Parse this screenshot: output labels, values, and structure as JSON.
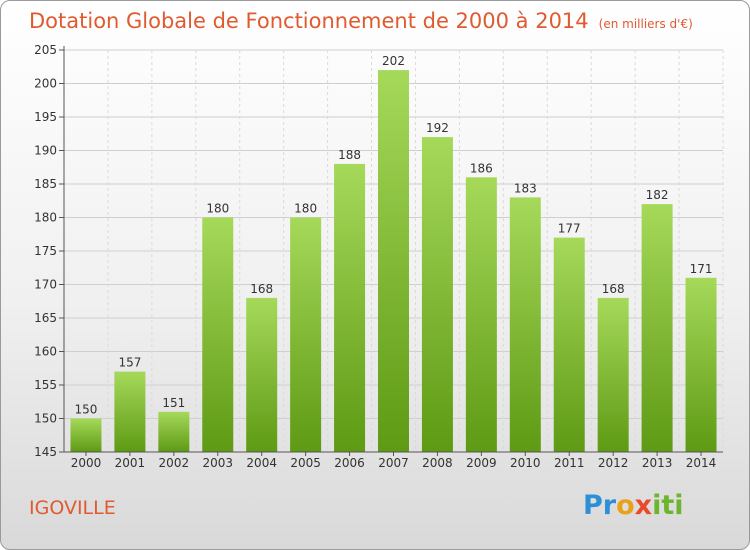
{
  "header": {
    "title": "Dotation Globale de Fonctionnement de 2000 à 2014",
    "unit": "(en milliers d'€)"
  },
  "footer": {
    "commune": "IGOVILLE",
    "brand": "Proxiti"
  },
  "colors": {
    "title": "#e05a2f",
    "bar_light": "#a6d95a",
    "bar_dark": "#5e9a14"
  },
  "chart_data": {
    "type": "bar",
    "title": "Dotation Globale de Fonctionnement de 2000 à 2014",
    "subtitle": "(en milliers d'€)",
    "xlabel": "",
    "ylabel": "",
    "categories": [
      "2000",
      "2001",
      "2002",
      "2003",
      "2004",
      "2005",
      "2006",
      "2007",
      "2008",
      "2009",
      "2010",
      "2011",
      "2012",
      "2013",
      "2014"
    ],
    "values": [
      150,
      157,
      151,
      180,
      168,
      180,
      188,
      202,
      192,
      186,
      183,
      177,
      168,
      182,
      171
    ],
    "ylim": [
      145,
      205
    ],
    "yticks": [
      145,
      150,
      155,
      160,
      165,
      170,
      175,
      180,
      185,
      190,
      195,
      200,
      205
    ],
    "grid": true,
    "data_labels": true
  }
}
